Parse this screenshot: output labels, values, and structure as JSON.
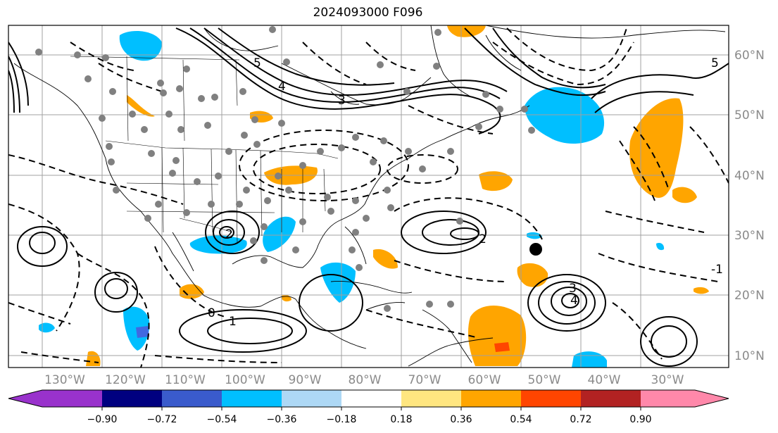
{
  "title": "2024093000 F096",
  "map": {
    "lon_labels": [
      "130°W",
      "120°W",
      "110°W",
      "100°W",
      "90°W",
      "80°W",
      "70°W",
      "60°W",
      "50°W",
      "40°W",
      "30°W"
    ],
    "lat_labels": [
      "60°N",
      "50°N",
      "40°N",
      "30°N",
      "20°N",
      "10°N"
    ],
    "contour_labels": [
      "5",
      "4",
      "3",
      "2",
      "1",
      "0",
      "-1",
      "2",
      "3",
      "4",
      "5"
    ],
    "colors": {
      "positive_fill": "#ffa500",
      "positive_strong": "#ff4500",
      "negative_fill": "#00bfff",
      "negative_strong": "#4169e1",
      "station_dot": "#808080",
      "grid": "#a0a0a0"
    }
  },
  "colorbar": {
    "ticks": [
      "−0.90",
      "−0.72",
      "−0.54",
      "−0.36",
      "−0.18",
      "0.18",
      "0.36",
      "0.54",
      "0.72",
      "0.90"
    ],
    "colors": [
      "#9932cc",
      "#000080",
      "#3a5bcc",
      "#00bfff",
      "#add8f5",
      "#ffffff",
      "#ffe680",
      "#ffa500",
      "#ff4500",
      "#b22222",
      "#ff88aa"
    ]
  }
}
